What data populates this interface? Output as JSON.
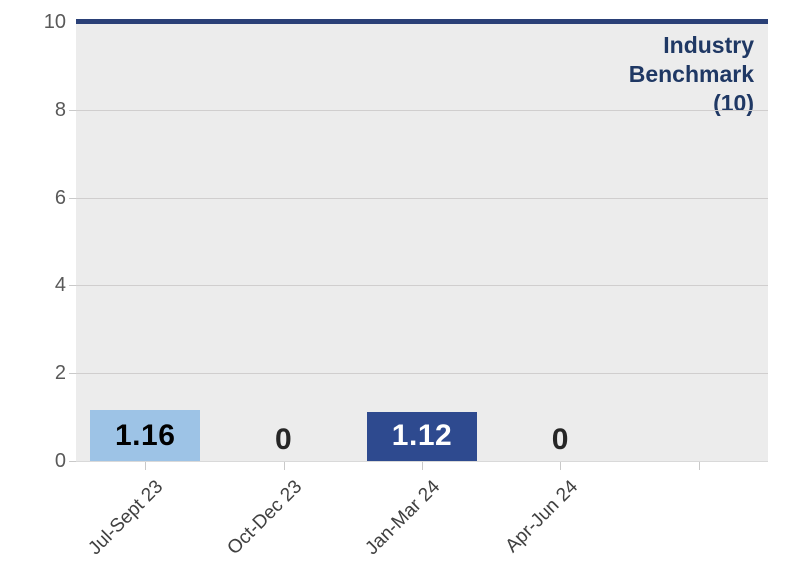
{
  "chart_data": {
    "type": "bar",
    "title": "",
    "xlabel": "",
    "ylabel": "",
    "categories": [
      "Jul-Sept 23",
      "Oct-Dec 23",
      "Jan-Mar 24",
      "Apr-Jun 24",
      ""
    ],
    "values": [
      1.16,
      0,
      1.12,
      0,
      null
    ],
    "value_labels": [
      "1.16",
      "0",
      "1.12",
      "0",
      ""
    ],
    "bar_colors": [
      "#9DC3E6",
      null,
      "#2E4A8F",
      null,
      null
    ],
    "value_label_colors": [
      "#000000",
      "#262626",
      "#FFFFFF",
      "#262626",
      null
    ],
    "ylim": [
      0,
      10
    ],
    "yticks": [
      0,
      2,
      4,
      6,
      8,
      10
    ],
    "grid": true,
    "legend_position": "none",
    "benchmark": {
      "value": 10,
      "lines": [
        "Industry",
        "Benchmark",
        "(10)"
      ],
      "line_color": "#2A4077",
      "text_color": "#1F3864"
    },
    "colors": {
      "plot_bg": "#ECECEC",
      "gridline": "#D0CECE",
      "axis_line": "#D9D9D9",
      "tick": "#C9C9C9",
      "y_label": "#595959",
      "x_label": "#404040"
    }
  }
}
